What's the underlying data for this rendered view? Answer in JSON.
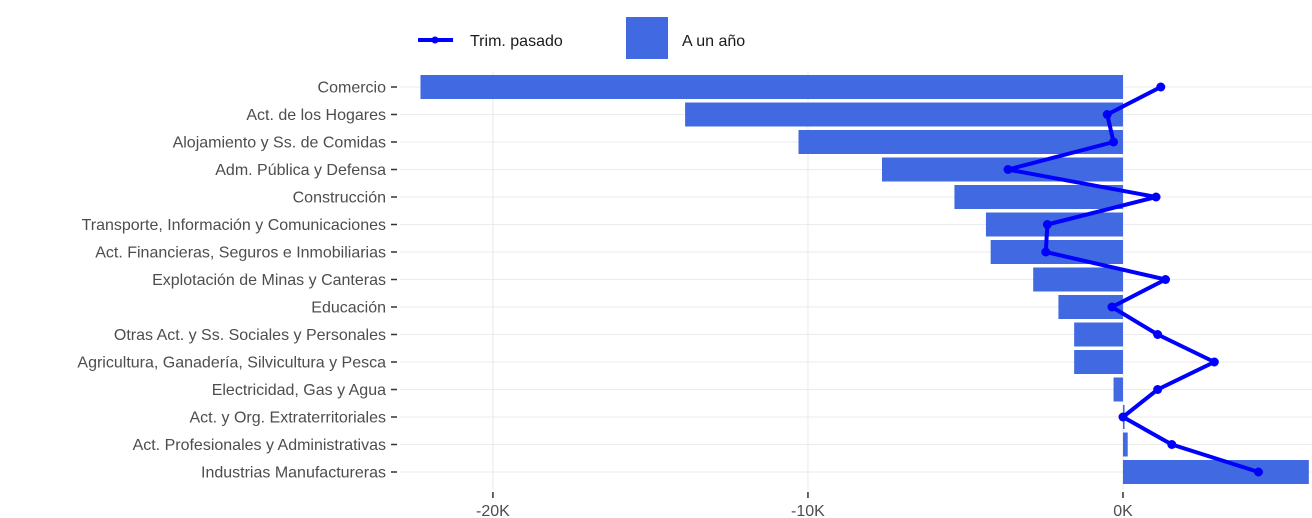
{
  "chart_data": {
    "type": "bar",
    "orientation": "horizontal",
    "categories": [
      "Comercio",
      "Act. de los Hogares",
      "Alojamiento y Ss. de Comidas",
      "Adm. Pública y Defensa",
      "Construcción",
      "Transporte, Información y Comunicaciones",
      "Act. Financieras, Seguros e Inmobiliarias",
      "Explotación de Minas y Canteras",
      "Educación",
      "Otras Act. y Ss. Sociales y Personales",
      "Agricultura, Ganadería, Silvicultura y Pesca",
      "Electricidad, Gas y Agua",
      "Act. y Org. Extraterritoriales",
      "Act. Profesionales y Administrativas",
      "Industrias Manufactureras"
    ],
    "series": [
      {
        "name": "A un año",
        "kind": "bar",
        "color": "#4169e1",
        "values": [
          -22300,
          -13900,
          -10300,
          -7650,
          -5350,
          -4350,
          -4200,
          -2850,
          -2050,
          -1550,
          -1550,
          -300,
          50,
          150,
          5900
        ]
      },
      {
        "name": "Trim. pasado",
        "kind": "line",
        "color": "#0000ff",
        "values": [
          1200,
          -500,
          -300,
          -3650,
          1050,
          -2400,
          -2450,
          1350,
          -350,
          1100,
          2900,
          1100,
          0,
          1550,
          4300
        ]
      }
    ],
    "xlim": [
      -22950,
      6000
    ],
    "xticks": [
      -20000,
      -10000,
      0
    ],
    "xtick_labels": [
      "-20K",
      "-10K",
      "0K"
    ],
    "grid": true,
    "legend_position": "top"
  }
}
